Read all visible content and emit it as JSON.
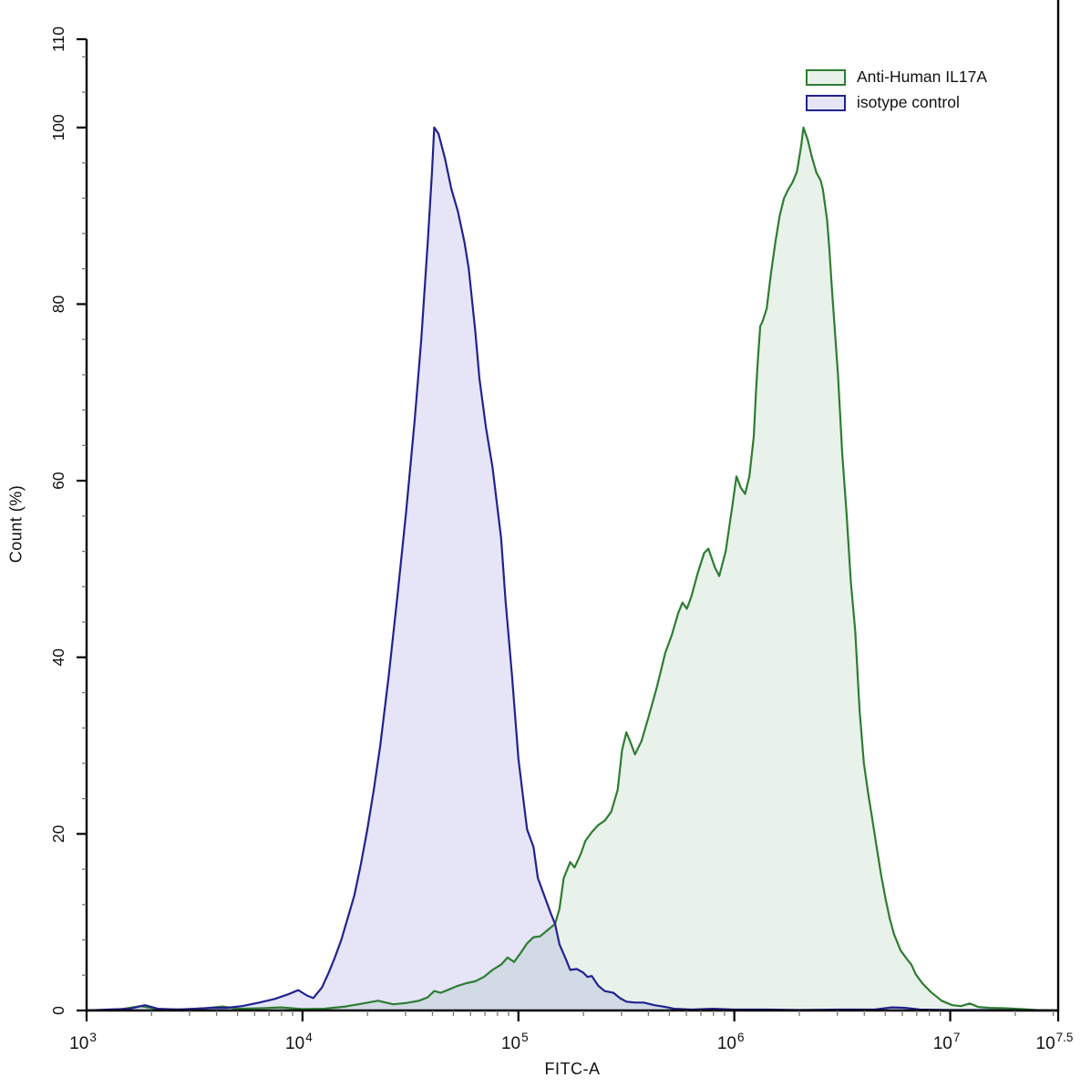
{
  "chart_data": {
    "type": "area",
    "title": "",
    "xlabel": "FITC-A",
    "ylabel": "Count  (%)",
    "x_scale": "log10",
    "x_range_log": [
      3,
      7.5
    ],
    "y_range": [
      0,
      110
    ],
    "grid": false,
    "legend_position": "top-right",
    "x_major_ticks": [
      {
        "log": 3,
        "base": "10",
        "exp": "3"
      },
      {
        "log": 4,
        "base": "10",
        "exp": "4"
      },
      {
        "log": 5,
        "base": "10",
        "exp": "5"
      },
      {
        "log": 6,
        "base": "10",
        "exp": "6"
      },
      {
        "log": 7,
        "base": "10",
        "exp": "7"
      },
      {
        "log": 7.5,
        "base": "10",
        "exp": "7.5"
      }
    ],
    "y_major_ticks": [
      0,
      20,
      40,
      60,
      80,
      100,
      110
    ],
    "y_minor_step": 4,
    "series": [
      {
        "name": "Anti-Human IL17A",
        "stroke": "#2e7d32",
        "fill": "rgba(86,158,90,0.13)",
        "points": [
          [
            3.0,
            0
          ],
          [
            3.15,
            0.1
          ],
          [
            3.25,
            0.5
          ],
          [
            3.33,
            0.15
          ],
          [
            3.45,
            0.1
          ],
          [
            3.55,
            0.25
          ],
          [
            3.63,
            0.45
          ],
          [
            3.7,
            0.2
          ],
          [
            3.8,
            0.25
          ],
          [
            3.9,
            0.35
          ],
          [
            4.0,
            0.15
          ],
          [
            4.1,
            0.2
          ],
          [
            4.2,
            0.45
          ],
          [
            4.28,
            0.8
          ],
          [
            4.35,
            1.1
          ],
          [
            4.42,
            0.7
          ],
          [
            4.48,
            0.85
          ],
          [
            4.54,
            1.1
          ],
          [
            4.58,
            1.5
          ],
          [
            4.61,
            2.2
          ],
          [
            4.64,
            2.0
          ],
          [
            4.68,
            2.4
          ],
          [
            4.72,
            2.8
          ],
          [
            4.76,
            3.1
          ],
          [
            4.8,
            3.3
          ],
          [
            4.84,
            3.8
          ],
          [
            4.88,
            4.6
          ],
          [
            4.92,
            5.2
          ],
          [
            4.95,
            6.0
          ],
          [
            4.98,
            5.5
          ],
          [
            5.01,
            6.5
          ],
          [
            5.04,
            7.6
          ],
          [
            5.07,
            8.3
          ],
          [
            5.1,
            8.4
          ],
          [
            5.13,
            9.0
          ],
          [
            5.17,
            9.8
          ],
          [
            5.19,
            11.5
          ],
          [
            5.21,
            15.0
          ],
          [
            5.24,
            16.8
          ],
          [
            5.26,
            16.2
          ],
          [
            5.29,
            17.8
          ],
          [
            5.31,
            19.2
          ],
          [
            5.34,
            20.2
          ],
          [
            5.37,
            21.0
          ],
          [
            5.4,
            21.5
          ],
          [
            5.43,
            22.5
          ],
          [
            5.46,
            25.0
          ],
          [
            5.48,
            29.5
          ],
          [
            5.5,
            31.5
          ],
          [
            5.52,
            30.3
          ],
          [
            5.54,
            29.0
          ],
          [
            5.57,
            30.5
          ],
          [
            5.6,
            33.0
          ],
          [
            5.64,
            36.5
          ],
          [
            5.68,
            40.5
          ],
          [
            5.71,
            42.5
          ],
          [
            5.74,
            45.0
          ],
          [
            5.76,
            46.2
          ],
          [
            5.78,
            45.5
          ],
          [
            5.8,
            46.8
          ],
          [
            5.83,
            49.5
          ],
          [
            5.86,
            51.8
          ],
          [
            5.88,
            52.3
          ],
          [
            5.91,
            50.2
          ],
          [
            5.93,
            49.2
          ],
          [
            5.96,
            52.0
          ],
          [
            5.99,
            57.0
          ],
          [
            6.01,
            60.5
          ],
          [
            6.03,
            59.2
          ],
          [
            6.05,
            58.5
          ],
          [
            6.07,
            60.5
          ],
          [
            6.09,
            65.0
          ],
          [
            6.1,
            70.0
          ],
          [
            6.11,
            74.0
          ],
          [
            6.12,
            77.5
          ],
          [
            6.13,
            78.0
          ],
          [
            6.15,
            79.5
          ],
          [
            6.17,
            83.5
          ],
          [
            6.19,
            87.0
          ],
          [
            6.21,
            90.0
          ],
          [
            6.23,
            92.0
          ],
          [
            6.25,
            93.0
          ],
          [
            6.27,
            93.8
          ],
          [
            6.29,
            95.0
          ],
          [
            6.31,
            98.0
          ],
          [
            6.32,
            100.0
          ],
          [
            6.34,
            98.6
          ],
          [
            6.36,
            96.6
          ],
          [
            6.38,
            94.9
          ],
          [
            6.4,
            94.0
          ],
          [
            6.41,
            93.0
          ],
          [
            6.43,
            89.5
          ],
          [
            6.44,
            86.3
          ],
          [
            6.45,
            82.4
          ],
          [
            6.46,
            79.0
          ],
          [
            6.48,
            72.0
          ],
          [
            6.5,
            63.0
          ],
          [
            6.52,
            56.3
          ],
          [
            6.54,
            48.4
          ],
          [
            6.56,
            43.0
          ],
          [
            6.58,
            34.0
          ],
          [
            6.6,
            28.0
          ],
          [
            6.62,
            24.6
          ],
          [
            6.64,
            21.5
          ],
          [
            6.66,
            18.4
          ],
          [
            6.68,
            15.3
          ],
          [
            6.7,
            12.7
          ],
          [
            6.72,
            10.4
          ],
          [
            6.74,
            8.6
          ],
          [
            6.77,
            6.8
          ],
          [
            6.8,
            5.8
          ],
          [
            6.82,
            5.2
          ],
          [
            6.84,
            4.1
          ],
          [
            6.87,
            3.1
          ],
          [
            6.91,
            2.1
          ],
          [
            6.96,
            1.1
          ],
          [
            7.01,
            0.6
          ],
          [
            7.05,
            0.5
          ],
          [
            7.09,
            0.8
          ],
          [
            7.13,
            0.4
          ],
          [
            7.18,
            0.3
          ],
          [
            7.26,
            0.25
          ],
          [
            7.33,
            0.15
          ],
          [
            7.4,
            0.05
          ],
          [
            7.5,
            0
          ]
        ]
      },
      {
        "name": "isotype control",
        "stroke": "#22228f",
        "fill": "rgba(95,95,205,0.16)",
        "points": [
          [
            3.0,
            0
          ],
          [
            3.1,
            0.1
          ],
          [
            3.2,
            0.2
          ],
          [
            3.27,
            0.6
          ],
          [
            3.33,
            0.2
          ],
          [
            3.42,
            0.1
          ],
          [
            3.5,
            0.2
          ],
          [
            3.58,
            0.3
          ],
          [
            3.65,
            0.3
          ],
          [
            3.72,
            0.5
          ],
          [
            3.8,
            0.9
          ],
          [
            3.87,
            1.3
          ],
          [
            3.93,
            1.8
          ],
          [
            3.98,
            2.3
          ],
          [
            4.02,
            1.7
          ],
          [
            4.05,
            1.4
          ],
          [
            4.09,
            2.6
          ],
          [
            4.12,
            4.2
          ],
          [
            4.15,
            6.0
          ],
          [
            4.18,
            8.0
          ],
          [
            4.21,
            10.5
          ],
          [
            4.24,
            13.0
          ],
          [
            4.27,
            16.5
          ],
          [
            4.3,
            20.5
          ],
          [
            4.33,
            25.0
          ],
          [
            4.36,
            30.0
          ],
          [
            4.4,
            38.0
          ],
          [
            4.44,
            47.0
          ],
          [
            4.48,
            56.5
          ],
          [
            4.52,
            67.0
          ],
          [
            4.55,
            76.0
          ],
          [
            4.58,
            87.0
          ],
          [
            4.6,
            95.0
          ],
          [
            4.61,
            100.0
          ],
          [
            4.63,
            99.3
          ],
          [
            4.66,
            96.5
          ],
          [
            4.69,
            93.0
          ],
          [
            4.72,
            90.5
          ],
          [
            4.75,
            87.0
          ],
          [
            4.77,
            84.0
          ],
          [
            4.8,
            77.0
          ],
          [
            4.82,
            71.5
          ],
          [
            4.85,
            66.0
          ],
          [
            4.88,
            61.5
          ],
          [
            4.92,
            53.5
          ],
          [
            4.94,
            46.5
          ],
          [
            4.97,
            38.0
          ],
          [
            5.0,
            28.5
          ],
          [
            5.02,
            24.5
          ],
          [
            5.04,
            20.5
          ],
          [
            5.07,
            18.5
          ],
          [
            5.09,
            15.0
          ],
          [
            5.12,
            13.0
          ],
          [
            5.15,
            11.0
          ],
          [
            5.17,
            9.8
          ],
          [
            5.19,
            7.5
          ],
          [
            5.22,
            5.8
          ],
          [
            5.24,
            4.6
          ],
          [
            5.27,
            4.7
          ],
          [
            5.3,
            4.3
          ],
          [
            5.32,
            3.8
          ],
          [
            5.34,
            3.9
          ],
          [
            5.37,
            2.8
          ],
          [
            5.4,
            2.2
          ],
          [
            5.44,
            2.0
          ],
          [
            5.47,
            1.4
          ],
          [
            5.5,
            1.0
          ],
          [
            5.54,
            0.9
          ],
          [
            5.58,
            0.9
          ],
          [
            5.63,
            0.6
          ],
          [
            5.68,
            0.4
          ],
          [
            5.72,
            0.2
          ],
          [
            5.8,
            0.1
          ],
          [
            5.9,
            0.2
          ],
          [
            6.0,
            0.1
          ],
          [
            6.15,
            0.1
          ],
          [
            6.3,
            0.05
          ],
          [
            6.5,
            0.1
          ],
          [
            6.65,
            0.1
          ],
          [
            6.73,
            0.35
          ],
          [
            6.79,
            0.3
          ],
          [
            6.86,
            0.1
          ],
          [
            7.0,
            0.05
          ],
          [
            7.15,
            0.05
          ],
          [
            7.3,
            0
          ],
          [
            7.5,
            0
          ]
        ]
      }
    ]
  },
  "legend": {
    "items": [
      {
        "label": "Anti-Human IL17A"
      },
      {
        "label": "isotype control"
      }
    ]
  }
}
